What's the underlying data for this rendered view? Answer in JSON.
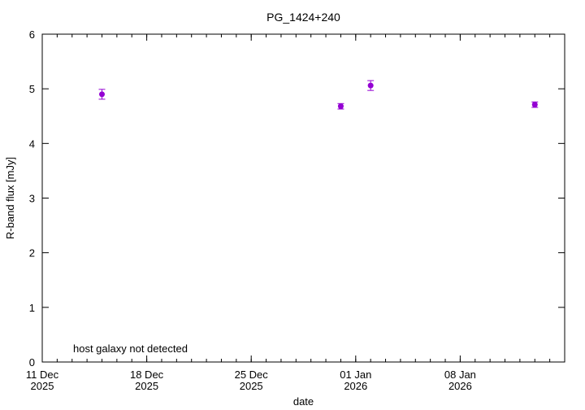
{
  "chart_data": {
    "type": "scatter",
    "title": "PG_1424+240",
    "xlabel": "date",
    "ylabel": "R-band flux [mJy]",
    "annotation": "host galaxy not detected",
    "xlim": [
      "2025-12-11",
      "2026-01-15"
    ],
    "ylim": [
      0,
      6
    ],
    "x_ticks": [
      {
        "date": "2025-12-11",
        "line1": "11 Dec",
        "line2": "2025"
      },
      {
        "date": "2025-12-18",
        "line1": "18 Dec",
        "line2": "2025"
      },
      {
        "date": "2025-12-25",
        "line1": "25 Dec",
        "line2": "2025"
      },
      {
        "date": "2026-01-01",
        "line1": "01 Jan",
        "line2": "2026"
      },
      {
        "date": "2026-01-08",
        "line1": "08 Jan",
        "line2": "2026"
      }
    ],
    "y_ticks": [
      0,
      1,
      2,
      3,
      4,
      5,
      6
    ],
    "grid": false,
    "marker_color": "#9400d3",
    "series": [
      {
        "points": [
          {
            "x": "2025-12-15",
            "y": 4.9,
            "err": 0.09
          },
          {
            "x": "2025-12-31",
            "y": 4.68,
            "err": 0.05
          },
          {
            "x": "2026-01-02",
            "y": 5.06,
            "err": 0.09
          },
          {
            "x": "2026-01-13",
            "y": 4.71,
            "err": 0.05
          }
        ]
      }
    ]
  }
}
